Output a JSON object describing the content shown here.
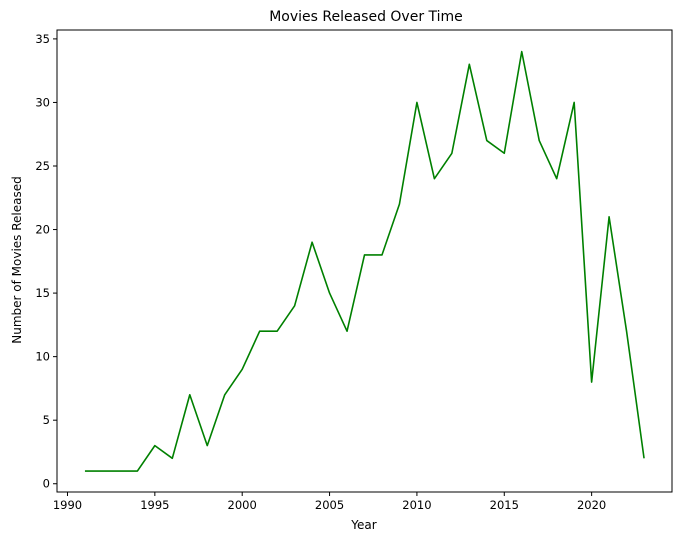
{
  "chart_data": {
    "type": "line",
    "title": "Movies Released Over Time",
    "xlabel": "Year",
    "ylabel": "Number of Movies Released",
    "xlim": [
      1989.4,
      2024.6
    ],
    "ylim": [
      -0.65,
      35.7
    ],
    "xticks": [
      1990,
      1995,
      2000,
      2005,
      2010,
      2015,
      2020
    ],
    "yticks": [
      0,
      5,
      10,
      15,
      20,
      25,
      30,
      35
    ],
    "grid": false,
    "legend": "none",
    "color": "#008000",
    "series": [
      {
        "x": [
          1991,
          1992,
          1993,
          1994,
          1995,
          1996,
          1997,
          1998,
          1999,
          2000,
          2001,
          2002,
          2003,
          2004,
          2005,
          2006,
          2007,
          2008,
          2009,
          2010,
          2011,
          2012,
          2013,
          2014,
          2015,
          2016,
          2017,
          2018,
          2019,
          2020,
          2021,
          2022,
          2023
        ],
        "values": [
          1,
          1,
          1,
          1,
          3,
          2,
          7,
          3,
          7,
          9,
          12,
          12,
          14,
          19,
          15,
          12,
          18,
          18,
          22,
          30,
          24,
          26,
          33,
          27,
          26,
          34,
          27,
          24,
          30,
          8,
          21,
          12,
          2
        ]
      }
    ]
  }
}
